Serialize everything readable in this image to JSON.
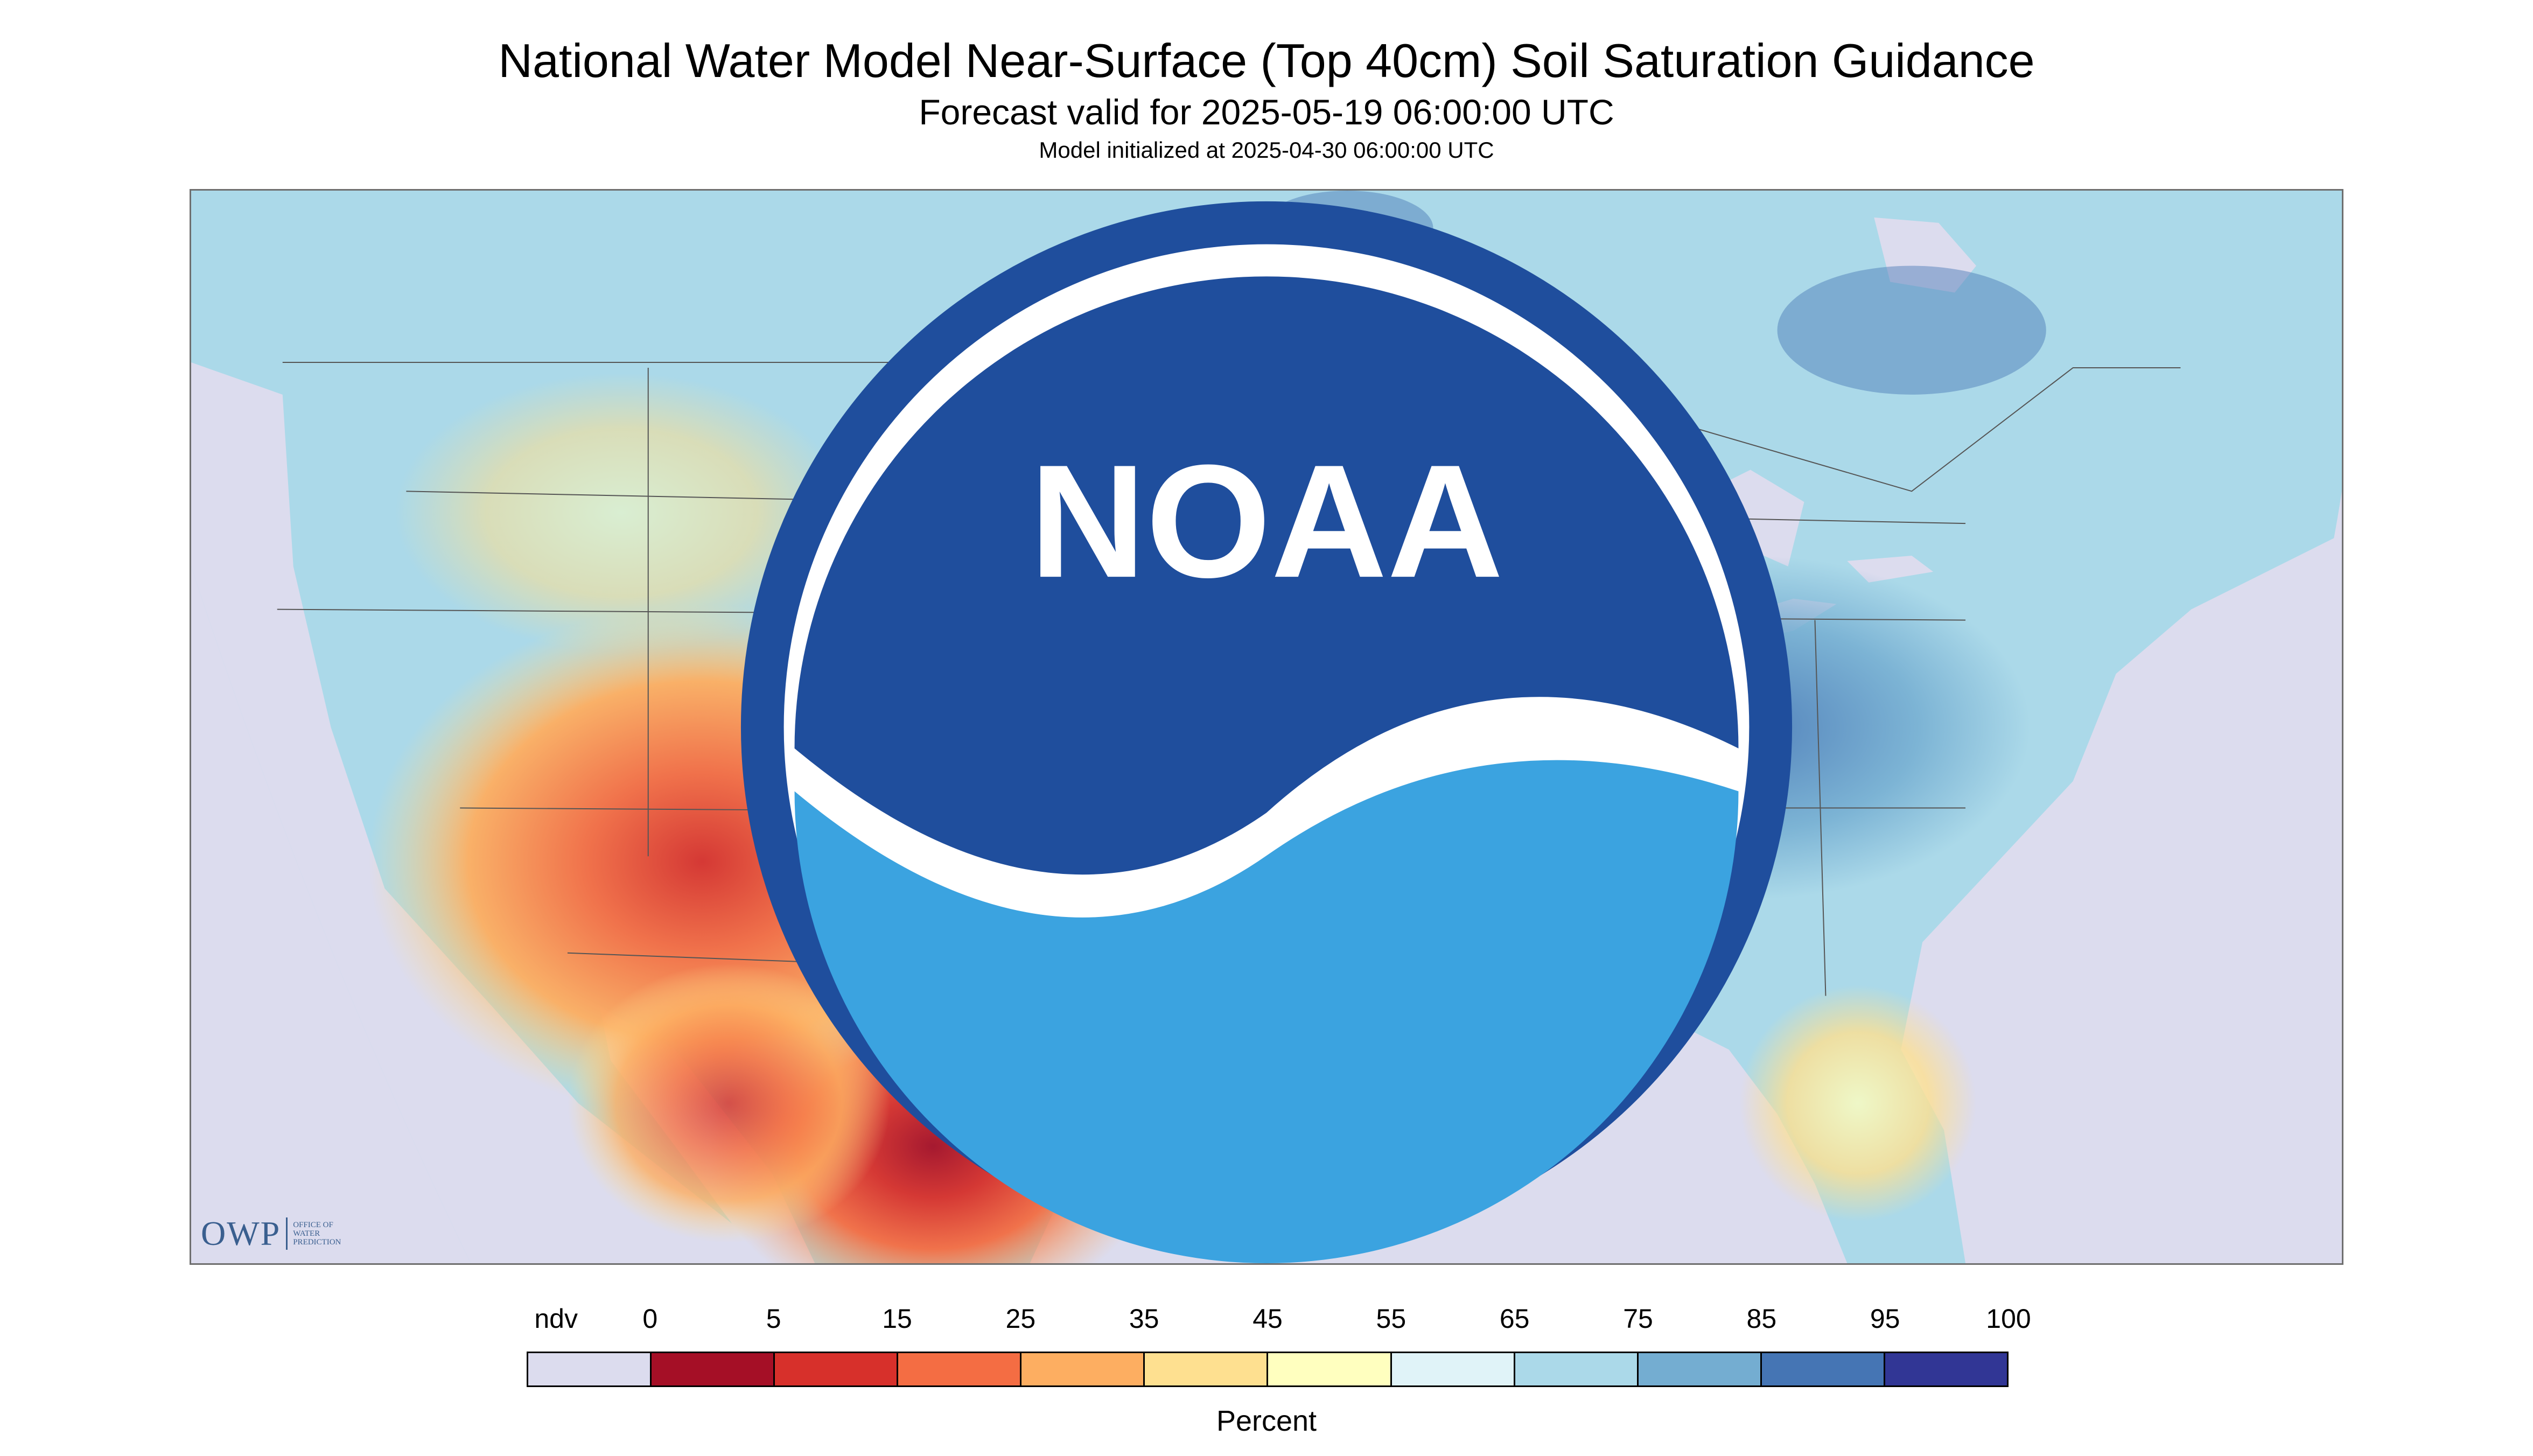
{
  "title": "National Water Model Near-Surface (Top 40cm) Soil Saturation Guidance",
  "subtitle": "Forecast valid for 2025-05-19 06:00:00 UTC",
  "init_line": "Model initialized at 2025-04-30 06:00:00 UTC",
  "logos": {
    "owp_letters": "OWP",
    "owp_text": [
      "OFFICE OF",
      "WATER",
      "PREDICTION"
    ],
    "noaa": "NOAA"
  },
  "legend": {
    "title": "Percent",
    "tick_labels": [
      "ndv",
      "0",
      "5",
      "15",
      "25",
      "35",
      "45",
      "55",
      "65",
      "75",
      "85",
      "95",
      "100"
    ],
    "colors": [
      "#dcdcee",
      "#a50f26",
      "#d7302b",
      "#f46d43",
      "#fdae61",
      "#fee090",
      "#ffffbf",
      "#e0f3f8",
      "#abd9e9",
      "#74add1",
      "#4575b4",
      "#313695"
    ]
  },
  "map_colors": {
    "nodata": "#dcdcee",
    "water": "#dcdcee",
    "border": "#555555"
  }
}
